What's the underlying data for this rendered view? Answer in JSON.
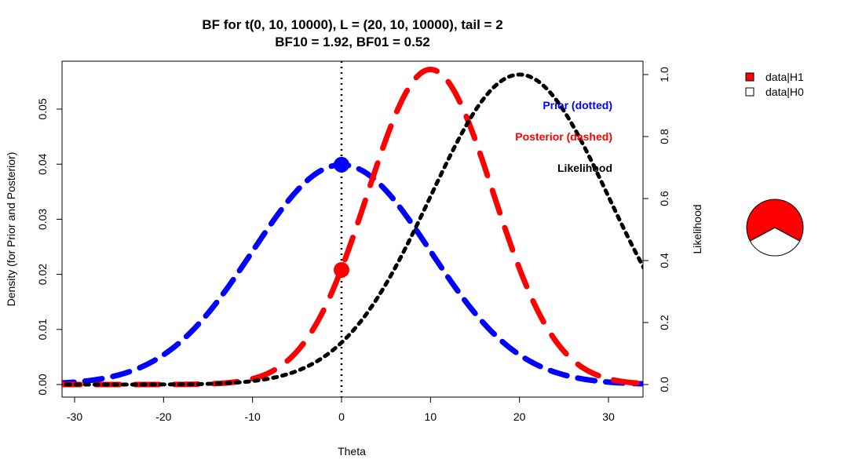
{
  "chart_data": {
    "type": "line",
    "title": "BF for t(0, 10, 10000), L = (20, 10, 10000), tail = 2",
    "subtitle": "BF10 = 1.92, BF01 = 0.52",
    "xlabel": "Theta",
    "ylabel_left": "Density (for Prior and Posterior)",
    "ylabel_right": "Likelihood",
    "xlim": [
      -32,
      34
    ],
    "ylim_left": [
      0,
      0.058
    ],
    "ylim_right": [
      0,
      1.0
    ],
    "x_ticks": [
      -30,
      -20,
      -10,
      0,
      10,
      20,
      30
    ],
    "x_tick_labels": [
      "-30",
      "-20",
      "-10",
      "0",
      "10",
      "20",
      "30"
    ],
    "y_left_ticks": [
      0,
      0.01,
      0.02,
      0.03,
      0.04,
      0.05
    ],
    "y_left_tick_labels": [
      "0.00",
      "0.01",
      "0.02",
      "0.03",
      "0.04",
      "0.05"
    ],
    "y_right_ticks": [
      0,
      0.2,
      0.4,
      0.6,
      0.8,
      1.0
    ],
    "y_right_tick_labels": [
      "0.0",
      "0.2",
      "0.4",
      "0.6",
      "0.8",
      "1.0"
    ],
    "series": [
      {
        "key": "prior",
        "color": "#0000ff",
        "axis": "left",
        "dist": "normal",
        "mean": 0,
        "sd": 10,
        "scale": 1
      },
      {
        "key": "posterior",
        "color": "#ff0000",
        "axis": "left",
        "dist": "normal",
        "mean": 10,
        "sd": 7.071,
        "scale": 1.0137
      },
      {
        "key": "likelihood",
        "color": "#000000",
        "axis": "right",
        "dist": "normal_unit_peak",
        "mean": 20,
        "sd": 10,
        "scale": 1
      }
    ],
    "vline_x": 0,
    "points": [
      {
        "key": "prior-at-zero",
        "x": 0,
        "y": 0.0399,
        "color": "#0000ff"
      },
      {
        "key": "posterior-at-zero",
        "x": 0,
        "y": 0.0208,
        "color": "#ff0000"
      }
    ],
    "annotations": [
      {
        "key": "prior",
        "text": "Prior (dotted)",
        "color": "#0000ff"
      },
      {
        "key": "posterior",
        "text": "Posterior (dashed)",
        "color": "#ff0000"
      },
      {
        "key": "likelihood",
        "text": "Likelihood",
        "color": "#000000"
      }
    ],
    "legend": {
      "position": "top-right",
      "items": [
        {
          "label": "data|H1",
          "fill": "#ff0000"
        },
        {
          "label": "data|H0",
          "fill": "#ffffff"
        }
      ]
    },
    "pie": {
      "values": [
        {
          "label": "data|H1",
          "value": 0.657,
          "color": "#ff0000"
        },
        {
          "label": "data|H0",
          "value": 0.343,
          "color": "#ffffff"
        }
      ]
    }
  }
}
